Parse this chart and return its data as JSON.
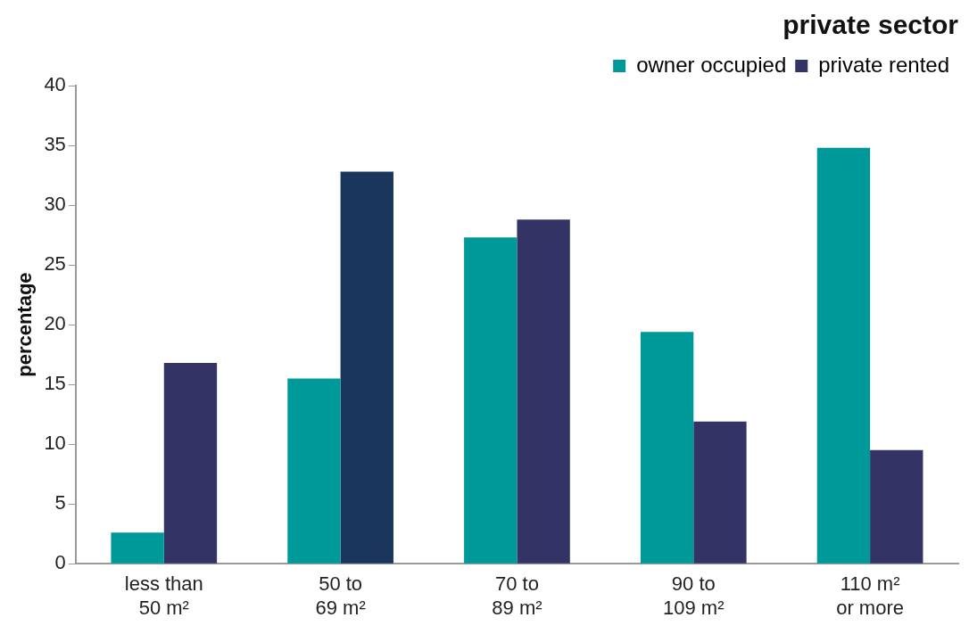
{
  "chart_data": {
    "type": "bar",
    "title": "private sector",
    "ylabel": "percentage",
    "categories": [
      "less than 50 m²",
      "50 to 69 m²",
      "70 to 89 m²",
      "90 to 109 m²",
      "110 m² or more"
    ],
    "series": [
      {
        "name": "owner occupied",
        "color": "#009999",
        "values": [
          2.6,
          15.5,
          27.3,
          19.4,
          34.8
        ]
      },
      {
        "name": "private rented",
        "color": "#333366",
        "colors": [
          "#333366",
          "#1b365d",
          "#333366",
          "#333366",
          "#333366"
        ],
        "values": [
          16.8,
          32.8,
          28.8,
          11.9,
          9.5
        ]
      }
    ],
    "ylim": [
      0,
      40
    ],
    "yticks": [
      0,
      5,
      10,
      15,
      20,
      25,
      30,
      35,
      40
    ],
    "grid": false,
    "legend": "top right"
  }
}
